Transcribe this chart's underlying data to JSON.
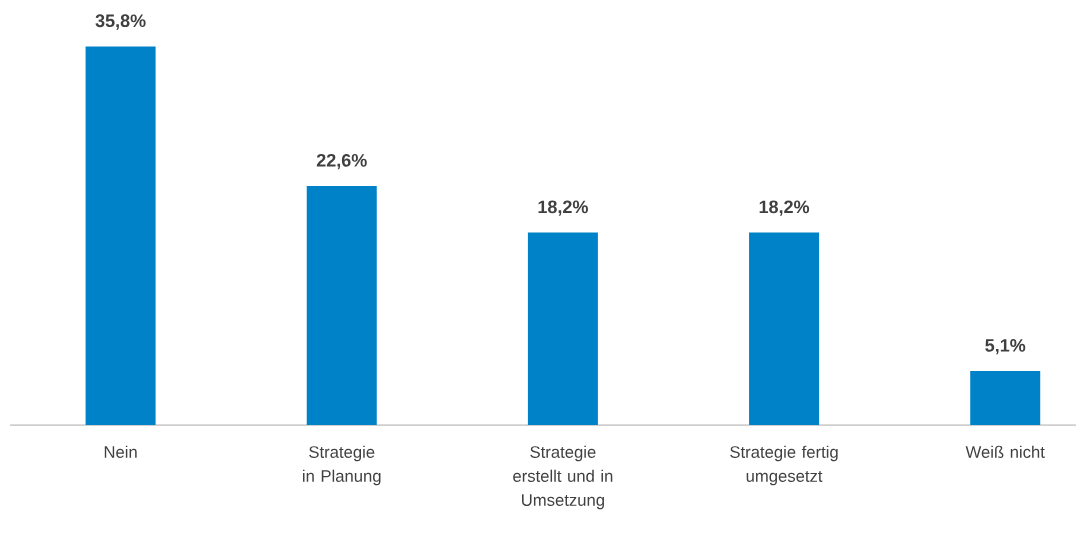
{
  "chart_data": {
    "type": "bar",
    "categories": [
      "Nein",
      "Strategie in Planung",
      "Strategie erstellt und in Umsetzung",
      "Strategie fertig umgesetzt",
      "Weiß nicht"
    ],
    "values": [
      35.8,
      22.6,
      18.2,
      18.2,
      5.1
    ],
    "value_labels": [
      "35,8%",
      "22,6%",
      "18,2%",
      "18,2%",
      "5,1%"
    ],
    "color": "#0082c8"
  }
}
